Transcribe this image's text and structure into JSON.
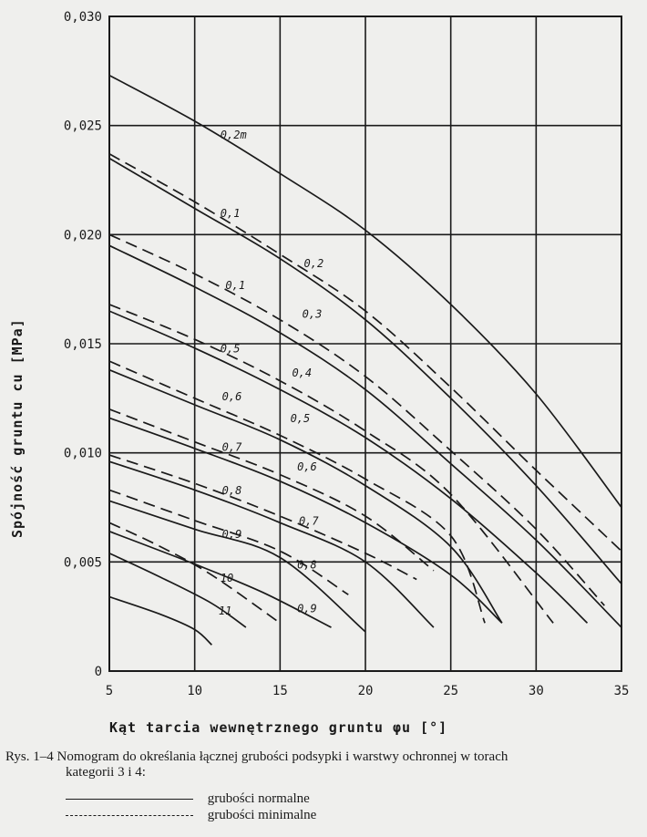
{
  "chart_data": {
    "type": "line",
    "xlabel": "Kąt tarcia wewnętrznego gruntu φu [°]",
    "ylabel": "Spójność gruntu cu [MPa]",
    "xlim": [
      5,
      35
    ],
    "ylim": [
      0,
      0.03
    ],
    "x_ticks": [
      "5",
      "10",
      "15",
      "20",
      "25",
      "30",
      "35"
    ],
    "y_ticks": [
      "0",
      "0,005",
      "0,010",
      "0,015",
      "0,020",
      "0,025",
      "0,030"
    ],
    "grid": true,
    "series": [
      {
        "name": "0,2m",
        "style": "solid",
        "x": [
          5,
          10,
          15,
          20,
          25,
          30,
          35
        ],
        "y": [
          0.0273,
          0.0252,
          0.0228,
          0.0202,
          0.0168,
          0.0127,
          0.0075
        ]
      },
      {
        "name": "0,2",
        "style": "solid",
        "x": [
          5,
          10,
          15,
          20,
          25,
          30,
          35
        ],
        "y": [
          0.0235,
          0.0212,
          0.0189,
          0.0161,
          0.0125,
          0.0085,
          0.004
        ]
      },
      {
        "name": "0,3",
        "style": "solid",
        "x": [
          5,
          10,
          15,
          20,
          25,
          30,
          35
        ],
        "y": [
          0.0195,
          0.0176,
          0.0155,
          0.0129,
          0.0095,
          0.006,
          0.002
        ]
      },
      {
        "name": "0,4",
        "style": "solid",
        "x": [
          5,
          10,
          15,
          20,
          25,
          30,
          33
        ],
        "y": [
          0.0165,
          0.0148,
          0.0129,
          0.0107,
          0.0079,
          0.0045,
          0.0022
        ]
      },
      {
        "name": "0,5",
        "style": "solid",
        "x": [
          5,
          10,
          15,
          20,
          25,
          28
        ],
        "y": [
          0.0138,
          0.0122,
          0.0106,
          0.0085,
          0.0057,
          0.0022
        ]
      },
      {
        "name": "0,6",
        "style": "solid",
        "x": [
          5,
          10,
          15,
          20,
          25,
          28
        ],
        "y": [
          0.0116,
          0.0102,
          0.0087,
          0.0068,
          0.0044,
          0.0022
        ]
      },
      {
        "name": "0,7",
        "style": "solid",
        "x": [
          5,
          10,
          15,
          20,
          24
        ],
        "y": [
          0.0096,
          0.0083,
          0.0068,
          0.005,
          0.002
        ]
      },
      {
        "name": "0,8",
        "style": "solid",
        "x": [
          5,
          10,
          15,
          20
        ],
        "y": [
          0.0078,
          0.0065,
          0.0052,
          0.0018
        ]
      },
      {
        "name": "0,9",
        "style": "solid",
        "x": [
          5,
          10,
          14,
          18
        ],
        "y": [
          0.0064,
          0.0049,
          0.0036,
          0.002
        ]
      },
      {
        "name": "10",
        "style": "solid",
        "x": [
          5,
          8,
          11,
          13
        ],
        "y": [
          0.0054,
          0.0043,
          0.0031,
          0.002
        ]
      },
      {
        "name": "11",
        "style": "solid",
        "x": [
          5,
          8,
          10,
          11
        ],
        "y": [
          0.0034,
          0.0026,
          0.0019,
          0.0012
        ]
      },
      {
        "name": "0,1",
        "style": "dashed",
        "x": [
          5,
          10,
          15,
          20,
          25,
          30,
          35
        ],
        "y": [
          0.0237,
          0.0215,
          0.0191,
          0.0165,
          0.013,
          0.0092,
          0.0055
        ]
      },
      {
        "name": "0,3",
        "style": "dashed",
        "x": [
          5,
          10,
          15,
          20,
          25,
          30,
          34
        ],
        "y": [
          0.02,
          0.0182,
          0.0161,
          0.0135,
          0.0101,
          0.0065,
          0.003
        ]
      },
      {
        "name": "0,5",
        "style": "dashed",
        "x": [
          5,
          10,
          15,
          20,
          25,
          31
        ],
        "y": [
          0.0168,
          0.0152,
          0.0133,
          0.011,
          0.0081,
          0.0022
        ]
      },
      {
        "name": "0,6",
        "style": "dashed",
        "x": [
          5,
          10,
          15,
          20,
          25,
          27
        ],
        "y": [
          0.0142,
          0.0125,
          0.0108,
          0.0088,
          0.0062,
          0.0022
        ]
      },
      {
        "name": "0,7",
        "style": "dashed",
        "x": [
          5,
          10,
          15,
          20,
          24
        ],
        "y": [
          0.012,
          0.0105,
          0.009,
          0.0071,
          0.0046
        ]
      },
      {
        "name": "0,8",
        "style": "dashed",
        "x": [
          5,
          10,
          15,
          20,
          23
        ],
        "y": [
          0.0099,
          0.0086,
          0.0071,
          0.0054,
          0.0042
        ]
      },
      {
        "name": "0,9",
        "style": "dashed",
        "x": [
          5,
          10,
          15,
          19
        ],
        "y": [
          0.0083,
          0.0069,
          0.0055,
          0.0035
        ]
      },
      {
        "name": "10",
        "style": "dashed",
        "x": [
          5,
          8,
          11,
          15
        ],
        "y": [
          0.0068,
          0.0057,
          0.0044,
          0.0022
        ]
      }
    ],
    "curve_labels": [
      {
        "text": "0,2m",
        "x": 11.5,
        "y": 0.0244
      },
      {
        "text": "0,1",
        "x": 11.5,
        "y": 0.0208
      },
      {
        "text": "0,2",
        "x": 16.4,
        "y": 0.0185
      },
      {
        "text": "0,1",
        "x": 11.8,
        "y": 0.0175
      },
      {
        "text": "0,3",
        "x": 16.3,
        "y": 0.0162
      },
      {
        "text": "0,5",
        "x": 11.5,
        "y": 0.0146
      },
      {
        "text": "0,4",
        "x": 15.7,
        "y": 0.0135
      },
      {
        "text": "0,6",
        "x": 11.6,
        "y": 0.0124
      },
      {
        "text": "0,5",
        "x": 15.6,
        "y": 0.0114
      },
      {
        "text": "0,7",
        "x": 11.6,
        "y": 0.0101
      },
      {
        "text": "0,6",
        "x": 16.0,
        "y": 0.0092
      },
      {
        "text": "0,8",
        "x": 11.6,
        "y": 0.0081
      },
      {
        "text": "0,7",
        "x": 16.1,
        "y": 0.0067
      },
      {
        "text": "0,9",
        "x": 11.6,
        "y": 0.0061
      },
      {
        "text": "0,8",
        "x": 16.0,
        "y": 0.0047
      },
      {
        "text": "10",
        "x": 11.5,
        "y": 0.0041
      },
      {
        "text": "0,9",
        "x": 16.0,
        "y": 0.0027
      },
      {
        "text": "11",
        "x": 11.4,
        "y": 0.0026
      }
    ]
  },
  "caption": {
    "prefix": "Rys. 1–4",
    "line1": "Nomogram do określania łącznej grubości podsypki i warstwy ochronnej w torach",
    "line2": "kategorii 3 i 4:"
  },
  "legend": {
    "solid_label": "grubości normalne",
    "dashed_label": "grubości minimalne"
  }
}
